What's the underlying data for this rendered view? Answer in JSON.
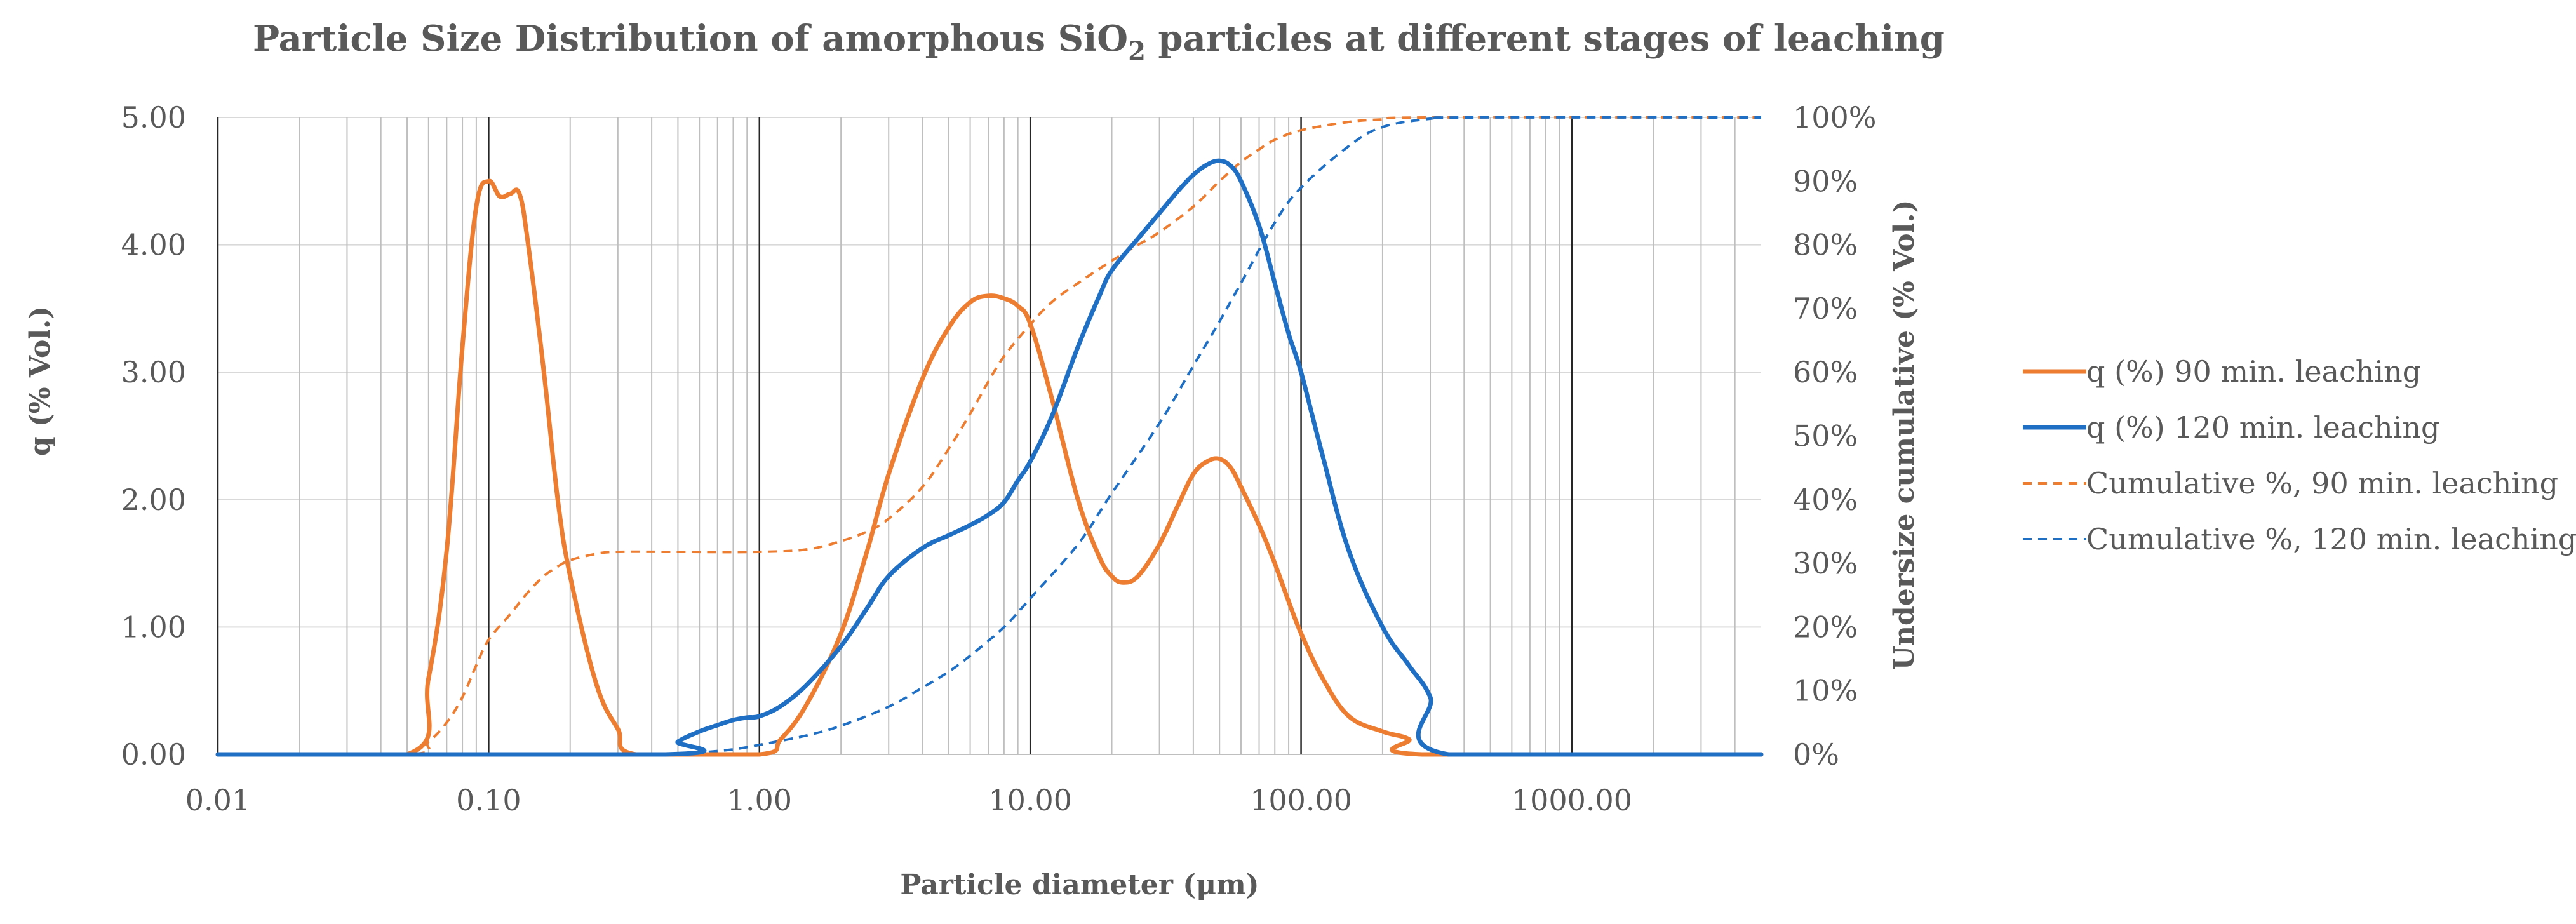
{
  "chart_data": {
    "type": "line",
    "title": "Particle Size Distribution of amorphous SiO",
    "title_subscript": "2",
    "title_suffix": " particles at different stages of leaching",
    "xlabel": "Particle diameter (μm)",
    "ylabel_left": "q (% Vol.)",
    "ylabel_right": "Undersize cumulative (% Vol.)",
    "x_scale": "log",
    "xlim": [
      0.01,
      5000
    ],
    "ylim_left": [
      0,
      5
    ],
    "ylim_right": [
      0,
      100
    ],
    "x_tick_labels": [
      "0.01",
      "0.10",
      "1.00",
      "10.00",
      "100.00",
      "1000.00"
    ],
    "x_tick_values": [
      0.01,
      0.1,
      1,
      10,
      100,
      1000
    ],
    "y_left_tick_labels": [
      "0.00",
      "1.00",
      "2.00",
      "3.00",
      "4.00",
      "5.00"
    ],
    "y_left_tick_values": [
      0,
      1,
      2,
      3,
      4,
      5
    ],
    "y_right_tick_labels": [
      "0%",
      "10%",
      "20%",
      "30%",
      "40%",
      "50%",
      "60%",
      "70%",
      "80%",
      "90%",
      "100%"
    ],
    "y_right_tick_values": [
      0,
      10,
      20,
      30,
      40,
      50,
      60,
      70,
      80,
      90,
      100
    ],
    "grid": true,
    "legend_position": "right",
    "series": [
      {
        "name": "q (%) 90 min. leaching",
        "axis": "left",
        "color": "#ED7D31",
        "style": "solid",
        "x": [
          0.01,
          0.05,
          0.06,
          0.07,
          0.08,
          0.09,
          0.1,
          0.11,
          0.12,
          0.13,
          0.14,
          0.16,
          0.18,
          0.2,
          0.25,
          0.3,
          0.35,
          1,
          1.2,
          1.5,
          2,
          2.5,
          3,
          4,
          5,
          6,
          7,
          8,
          9,
          10,
          12,
          15,
          18,
          20,
          22,
          25,
          30,
          35,
          40,
          45,
          50,
          55,
          60,
          70,
          80,
          90,
          100,
          120,
          150,
          200,
          250,
          280,
          5000
        ],
        "y": [
          0,
          0,
          0.6,
          1.6,
          3.2,
          4.3,
          4.5,
          4.38,
          4.4,
          4.4,
          4.0,
          3.0,
          2.0,
          1.4,
          0.55,
          0.2,
          0,
          0,
          0.12,
          0.4,
          0.95,
          1.6,
          2.2,
          2.95,
          3.35,
          3.55,
          3.6,
          3.58,
          3.52,
          3.38,
          2.8,
          2.0,
          1.55,
          1.4,
          1.35,
          1.4,
          1.65,
          1.95,
          2.2,
          2.3,
          2.32,
          2.25,
          2.1,
          1.8,
          1.5,
          1.2,
          0.95,
          0.6,
          0.3,
          0.18,
          0.12,
          0,
          0
        ]
      },
      {
        "name": "q (%) 120 min. leaching",
        "axis": "left",
        "color": "#1F6FC5",
        "style": "solid",
        "x": [
          0.01,
          0.45,
          0.5,
          0.6,
          0.7,
          0.8,
          0.9,
          1,
          1.2,
          1.5,
          2,
          2.5,
          3,
          4,
          5,
          6,
          7,
          8,
          9,
          10,
          12,
          15,
          18,
          20,
          25,
          30,
          35,
          40,
          45,
          50,
          55,
          60,
          70,
          80,
          90,
          100,
          120,
          150,
          200,
          250,
          300,
          350,
          5000
        ],
        "y": [
          0,
          0,
          0.1,
          0.18,
          0.23,
          0.27,
          0.29,
          0.3,
          0.38,
          0.55,
          0.85,
          1.15,
          1.4,
          1.62,
          1.72,
          1.8,
          1.88,
          1.98,
          2.15,
          2.3,
          2.65,
          3.2,
          3.6,
          3.8,
          4.05,
          4.25,
          4.42,
          4.55,
          4.63,
          4.66,
          4.62,
          4.5,
          4.15,
          3.7,
          3.3,
          3.0,
          2.35,
          1.6,
          1.0,
          0.7,
          0.45,
          0,
          0
        ]
      },
      {
        "name": "Cumulative %, 90 min. leaching",
        "axis": "right",
        "color": "#ED7D31",
        "style": "dashed",
        "x": [
          0.01,
          0.05,
          0.06,
          0.07,
          0.08,
          0.09,
          0.1,
          0.12,
          0.14,
          0.16,
          0.18,
          0.2,
          0.25,
          0.3,
          0.5,
          1,
          1.5,
          2,
          2.5,
          3,
          4,
          5,
          6,
          7,
          8,
          10,
          12,
          15,
          20,
          25,
          30,
          40,
          50,
          60,
          70,
          80,
          100,
          150,
          200,
          300,
          5000
        ],
        "y": [
          0,
          0,
          2,
          5,
          9,
          14,
          18,
          22,
          25.5,
          28,
          29.5,
          30.5,
          31.5,
          31.8,
          31.8,
          31.8,
          32.2,
          33.5,
          35,
          37,
          42,
          48,
          53.5,
          58.5,
          62.5,
          67.5,
          71,
          74,
          77.5,
          80,
          82,
          86,
          90,
          93,
          95,
          96.5,
          98,
          99.3,
          99.7,
          100,
          100
        ]
      },
      {
        "name": "Cumulative %, 120 min. leaching",
        "axis": "right",
        "color": "#1F6FC5",
        "style": "dashed",
        "x": [
          0.01,
          0.45,
          0.6,
          0.8,
          1,
          1.5,
          2,
          3,
          4,
          5,
          6,
          8,
          10,
          15,
          20,
          30,
          40,
          50,
          60,
          80,
          100,
          150,
          200,
          300,
          400,
          5000
        ],
        "y": [
          0,
          0,
          0.3,
          0.8,
          1.5,
          3,
          4.5,
          7.5,
          10.5,
          13,
          15.5,
          20,
          24.5,
          33,
          41,
          52,
          61,
          68,
          74,
          83.5,
          89,
          95.5,
          98.5,
          99.8,
          100,
          100
        ]
      }
    ]
  }
}
